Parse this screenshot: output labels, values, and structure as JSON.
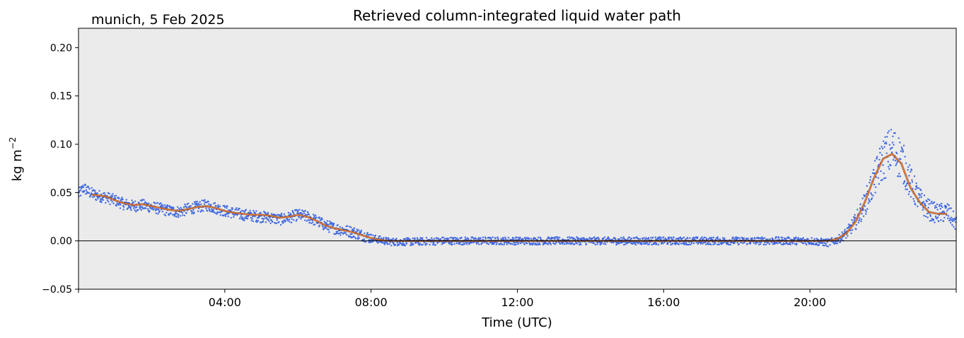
{
  "chart_data": {
    "type": "scatter",
    "title": "Retrieved column-integrated liquid water path",
    "location_label": "munich, 5 Feb 2025",
    "xlabel": "Time (UTC)",
    "ylabel": "kg m",
    "ylabel_superscript": "−2",
    "xlim_hours": [
      0,
      24
    ],
    "ylim": [
      -0.05,
      0.22
    ],
    "x_ticks": [
      {
        "hour": 4,
        "label": "04:00"
      },
      {
        "hour": 8,
        "label": "08:00"
      },
      {
        "hour": 12,
        "label": "12:00"
      },
      {
        "hour": 16,
        "label": "16:00"
      },
      {
        "hour": 20,
        "label": "20:00"
      }
    ],
    "y_ticks": [
      {
        "value": 0.2,
        "label": "0.20"
      },
      {
        "value": 0.15,
        "label": "0.15"
      },
      {
        "value": 0.1,
        "label": "0.10"
      },
      {
        "value": 0.05,
        "label": "0.05"
      },
      {
        "value": 0.0,
        "label": "0.00"
      },
      {
        "value": -0.05,
        "label": "−0.05"
      }
    ],
    "zero_line": true,
    "background_color": "#ebebeb",
    "series": [
      {
        "kind": "scatter",
        "color": "#4169e1",
        "points": [
          [
            0.0,
            0.048
          ],
          [
            0.15,
            0.055
          ],
          [
            0.3,
            0.05
          ],
          [
            0.5,
            0.047
          ],
          [
            0.75,
            0.045
          ],
          [
            1.0,
            0.042
          ],
          [
            1.25,
            0.038
          ],
          [
            1.5,
            0.036
          ],
          [
            1.75,
            0.037
          ],
          [
            2.0,
            0.035
          ],
          [
            2.25,
            0.033
          ],
          [
            2.5,
            0.031
          ],
          [
            2.75,
            0.03
          ],
          [
            3.0,
            0.033
          ],
          [
            3.25,
            0.035
          ],
          [
            3.5,
            0.037
          ],
          [
            3.75,
            0.034
          ],
          [
            4.0,
            0.031
          ],
          [
            4.25,
            0.029
          ],
          [
            4.5,
            0.027
          ],
          [
            4.75,
            0.026
          ],
          [
            5.0,
            0.025
          ],
          [
            5.25,
            0.024
          ],
          [
            5.5,
            0.022
          ],
          [
            5.75,
            0.024
          ],
          [
            6.0,
            0.027
          ],
          [
            6.25,
            0.025
          ],
          [
            6.5,
            0.021
          ],
          [
            6.75,
            0.016
          ],
          [
            7.0,
            0.013
          ],
          [
            7.25,
            0.011
          ],
          [
            7.5,
            0.009
          ],
          [
            7.75,
            0.006
          ],
          [
            8.0,
            0.003
          ],
          [
            8.25,
            0.001
          ],
          [
            8.5,
            -0.001
          ],
          [
            9.0,
            -0.001
          ],
          [
            10.0,
            0.0
          ],
          [
            11.0,
            0.0
          ],
          [
            12.0,
            0.0
          ],
          [
            13.0,
            0.0
          ],
          [
            14.0,
            0.0
          ],
          [
            15.0,
            0.0
          ],
          [
            16.0,
            0.0
          ],
          [
            17.0,
            0.0
          ],
          [
            18.0,
            0.0
          ],
          [
            19.0,
            0.0
          ],
          [
            19.5,
            0.0
          ],
          [
            20.0,
            0.0
          ],
          [
            20.5,
            -0.002
          ],
          [
            20.75,
            0.001
          ],
          [
            21.0,
            0.008
          ],
          [
            21.25,
            0.02
          ],
          [
            21.5,
            0.038
          ],
          [
            21.75,
            0.062
          ],
          [
            22.0,
            0.085
          ],
          [
            22.25,
            0.095
          ],
          [
            22.5,
            0.085
          ],
          [
            22.75,
            0.06
          ],
          [
            23.0,
            0.042
          ],
          [
            23.25,
            0.032
          ],
          [
            23.5,
            0.028
          ],
          [
            23.75,
            0.03
          ],
          [
            24.0,
            0.018
          ]
        ]
      },
      {
        "kind": "line",
        "name": "",
        "color": "#e8732a",
        "points": [
          [
            0.35,
            0.048
          ],
          [
            0.75,
            0.046
          ],
          [
            1.0,
            0.042
          ],
          [
            1.25,
            0.039
          ],
          [
            1.5,
            0.037
          ],
          [
            1.75,
            0.038
          ],
          [
            2.0,
            0.036
          ],
          [
            2.25,
            0.034
          ],
          [
            2.5,
            0.032
          ],
          [
            2.75,
            0.031
          ],
          [
            3.0,
            0.033
          ],
          [
            3.25,
            0.035
          ],
          [
            3.5,
            0.036
          ],
          [
            3.75,
            0.034
          ],
          [
            4.0,
            0.031
          ],
          [
            4.25,
            0.029
          ],
          [
            4.5,
            0.028
          ],
          [
            4.75,
            0.027
          ],
          [
            5.0,
            0.027
          ],
          [
            5.25,
            0.026
          ],
          [
            5.5,
            0.024
          ],
          [
            5.75,
            0.025
          ],
          [
            6.0,
            0.027
          ],
          [
            6.25,
            0.025
          ],
          [
            6.5,
            0.021
          ],
          [
            6.75,
            0.016
          ],
          [
            7.0,
            0.013
          ],
          [
            7.25,
            0.011
          ],
          [
            7.5,
            0.009
          ],
          [
            7.75,
            0.006
          ],
          [
            8.0,
            0.003
          ],
          [
            8.25,
            0.001
          ],
          [
            8.5,
            0.0
          ],
          [
            10.0,
            0.0
          ],
          [
            12.0,
            0.0
          ],
          [
            14.0,
            0.0
          ],
          [
            16.0,
            0.0
          ],
          [
            18.0,
            0.0
          ],
          [
            20.0,
            0.0
          ],
          [
            20.5,
            0.0
          ],
          [
            20.75,
            0.002
          ],
          [
            21.0,
            0.008
          ],
          [
            21.25,
            0.02
          ],
          [
            21.5,
            0.04
          ],
          [
            21.75,
            0.065
          ],
          [
            22.0,
            0.085
          ],
          [
            22.25,
            0.09
          ],
          [
            22.5,
            0.08
          ],
          [
            22.75,
            0.055
          ],
          [
            23.0,
            0.04
          ],
          [
            23.25,
            0.03
          ],
          [
            23.5,
            0.028
          ],
          [
            23.75,
            0.028
          ]
        ]
      }
    ]
  }
}
